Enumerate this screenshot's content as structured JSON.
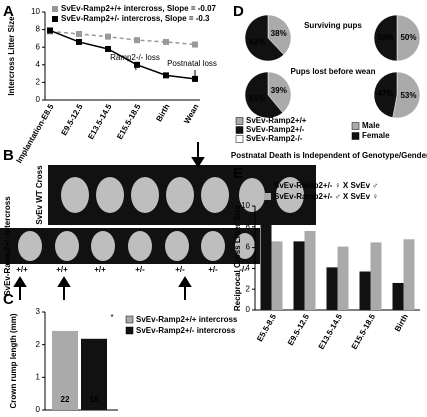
{
  "panel_labels": [
    "A",
    "B",
    "C",
    "D",
    "E"
  ],
  "panel_b": {
    "row_labels": [
      "SvEv WT Cross",
      "SvEv-Ramp2+/- Intercross"
    ],
    "genotypes": [
      "+/+",
      "+/+",
      "+/+",
      "+/-",
      "+/-",
      "+/-",
      "-/-"
    ]
  },
  "chart_data": [
    {
      "type": "line",
      "y_label": "Intercross Litter Size",
      "categories": [
        "Implantation-E8.5",
        "E9.5-12.5",
        "E13.5-14.5",
        "E15.5-18.5",
        "Birth",
        "Wean"
      ],
      "ylim": [
        0,
        10
      ],
      "yticks": [
        0,
        2,
        4,
        6,
        8,
        10
      ],
      "series": [
        {
          "name": "SvEv-Ramp2+/+ intercross, Slope = -0.07",
          "color": "#999999",
          "dashed": true,
          "values": [
            7.8,
            7.5,
            7.2,
            6.8,
            6.6,
            6.3
          ]
        },
        {
          "name": "SvEv-Ramp2+/- intercross, Slope = -0.3",
          "color": "#000000",
          "dashed": false,
          "values": [
            7.9,
            6.6,
            5.8,
            4.0,
            2.8,
            2.4
          ]
        }
      ],
      "annotations": [
        "Ramp2-/- loss",
        "Postnatal loss"
      ]
    },
    {
      "type": "bar",
      "y_label": "Crown rump length (mm)",
      "ylim": [
        0,
        3
      ],
      "yticks": [
        0,
        1,
        2,
        3
      ],
      "series": [
        {
          "name": "SvEv-Ramp2+/+ intercross",
          "color": "#aaaaaa",
          "values": [
            2.42
          ],
          "n_label": "22"
        },
        {
          "name": "SvEv-Ramp2+/- intercross",
          "color": "#111111",
          "values": [
            2.18
          ],
          "n_label": "18"
        }
      ],
      "annotation": "*"
    },
    {
      "type": "pie",
      "title": "Postnatal Death is Independent of Genotype/Gender",
      "row_titles": [
        "Surviving pups",
        "Pups lost before wean"
      ],
      "legend": [
        {
          "name": "SvEv-Ramp2+/+",
          "color": "#aaaaaa"
        },
        {
          "name": "SvEv-Ramp2+/-",
          "color": "#111111"
        },
        {
          "name": "SvEv-Ramp2-/-",
          "color": "#ffffff"
        },
        {
          "name": "Male",
          "color": "#aaaaaa"
        },
        {
          "name": "Female",
          "color": "#111111"
        }
      ],
      "pies": [
        {
          "values": [
            38,
            62
          ],
          "value_labels": [
            "38%",
            "62%"
          ],
          "colors": [
            "#aaaaaa",
            "#111111"
          ]
        },
        {
          "values": [
            50,
            50
          ],
          "value_labels": [
            "50%",
            "50%"
          ],
          "colors": [
            "#aaaaaa",
            "#111111"
          ]
        },
        {
          "values": [
            39,
            61
          ],
          "value_labels": [
            "39%",
            "61%"
          ],
          "colors": [
            "#aaaaaa",
            "#111111"
          ]
        },
        {
          "values": [
            53,
            47
          ],
          "value_labels": [
            "53%",
            "47%"
          ],
          "colors": [
            "#aaaaaa",
            "#111111"
          ]
        }
      ]
    },
    {
      "type": "groupbar",
      "y_label": "Reciprocal Cross Litter Size",
      "categories": [
        "E5.5-8.5",
        "E9.5-12.5",
        "E13.5-14.5",
        "E15.5-18.5",
        "Birth"
      ],
      "ylim": [
        0,
        10
      ],
      "yticks": [
        0,
        2,
        4,
        6,
        8,
        10
      ],
      "series": [
        {
          "name": "SvEv-Ramp2+/- ♀ X SvEv ♂",
          "color": "#111111",
          "values": [
            9.5,
            6.6,
            4.1,
            3.7,
            2.6
          ]
        },
        {
          "name": "SvEv-Ramp2+/- ♂ X SvEv ♀",
          "color": "#aaaaaa",
          "values": [
            6.6,
            7.6,
            6.1,
            6.5,
            6.8
          ]
        }
      ]
    }
  ]
}
